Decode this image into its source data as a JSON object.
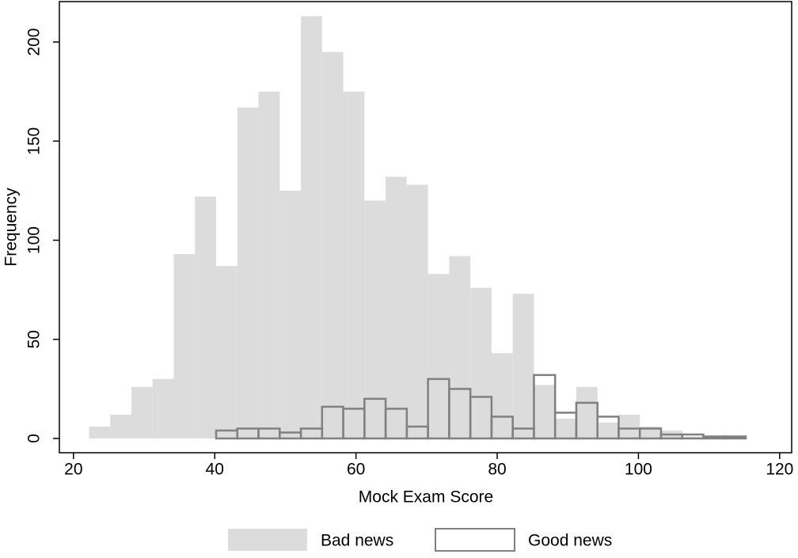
{
  "chart_data": {
    "type": "histogram",
    "xlabel": "Mock Exam Score",
    "ylabel": "Frequency",
    "xlim": [
      18,
      121.7
    ],
    "ylim": [
      -7.2,
      220.4
    ],
    "xticks": [
      20,
      40,
      60,
      80,
      100,
      120
    ],
    "yticks": [
      0,
      50,
      100,
      150,
      200
    ],
    "legend": "bottom",
    "series": [
      {
        "name": "Bad news",
        "color": "#dcdcdc",
        "fill": true,
        "bins": [
          22.2,
          25.2,
          28.2,
          31.2,
          34.2,
          37.2,
          40.2,
          43.2,
          46.2,
          49.2,
          52.2,
          55.2,
          58.2,
          61.2,
          64.2,
          67.2,
          70.2,
          73.2,
          76.2,
          79.2,
          82.2,
          85.2,
          88.2,
          91.2,
          94.2,
          97.2,
          100.2,
          103.2,
          106.2,
          109.2,
          112.2,
          115.2
        ],
        "values": [
          6,
          12,
          26,
          30,
          93,
          122,
          87,
          167,
          175,
          125,
          213,
          195,
          175,
          120,
          132,
          128,
          83,
          92,
          76,
          43,
          73,
          27,
          10,
          26,
          8,
          12,
          6,
          4,
          1,
          1,
          1
        ]
      },
      {
        "name": "Good news",
        "color": "#808080",
        "fill": false,
        "bins": [
          40.2,
          43.2,
          46.2,
          49.2,
          52.2,
          55.2,
          58.2,
          61.2,
          64.2,
          67.2,
          70.2,
          73.2,
          76.2,
          79.2,
          82.2,
          85.2,
          88.2,
          91.2,
          94.2,
          97.2,
          100.2,
          103.2,
          106.2,
          109.2,
          112.2,
          115.2
        ],
        "values": [
          4,
          5,
          5,
          3,
          5,
          16,
          15,
          20,
          15,
          6,
          30,
          25,
          21,
          11,
          5,
          32,
          13,
          18,
          11,
          5,
          5,
          2,
          2,
          1,
          1
        ]
      }
    ]
  }
}
